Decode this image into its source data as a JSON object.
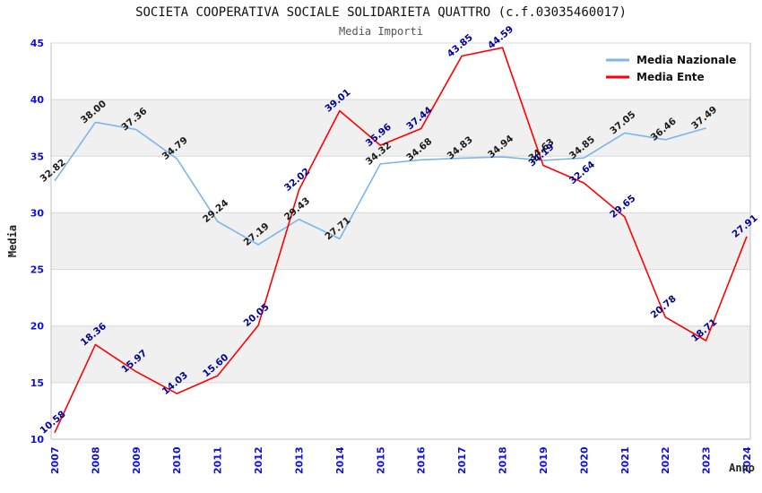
{
  "header": {
    "title": "SOCIETA COOPERATIVA SOCIALE SOLIDARIETA QUATTRO (c.f.03035460017)",
    "subtitle": "Media Importi"
  },
  "axes": {
    "y_title": "Media",
    "x_title": "Anno"
  },
  "colors": {
    "nazionale_line": "#7CB5EC",
    "ente_line": "#FF0000",
    "tick_label": "#0F0FDD",
    "nazionale_data_label": "#1A1A1A",
    "ente_data_label": "#000099",
    "band": "#F0F0F0",
    "gridline": "#D8D8D8",
    "axis_frame": "#C0C0C0"
  },
  "chart_data": {
    "type": "line",
    "title": "SOCIETA COOPERATIVA SOCIALE SOLIDARIETA QUATTRO (c.f.03035460017)",
    "subtitle": "Media Importi",
    "xlabel": "Anno",
    "ylabel": "Media",
    "ylim": [
      10,
      45
    ],
    "ytick_step": 5,
    "grid": "horizontal-with-alternating-bands",
    "legend_position": "top-right-inside",
    "x": [
      2007,
      2008,
      2009,
      2010,
      2011,
      2012,
      2013,
      2014,
      2015,
      2016,
      2017,
      2018,
      2019,
      2020,
      2021,
      2022,
      2023,
      2024
    ],
    "series": [
      {
        "name": "Media Nazionale",
        "color": "#7CB5EC",
        "label_color": "#1A1A1A",
        "values": [
          32.82,
          38.0,
          37.36,
          34.79,
          29.24,
          27.19,
          29.43,
          27.71,
          34.32,
          34.68,
          34.83,
          34.94,
          34.63,
          34.85,
          37.05,
          36.46,
          37.49,
          null
        ]
      },
      {
        "name": "Media Ente",
        "color": "#FF0000",
        "label_color": "#000099",
        "values": [
          10.58,
          18.36,
          15.97,
          14.03,
          15.6,
          20.05,
          32.02,
          39.01,
          35.96,
          37.44,
          43.85,
          44.59,
          34.19,
          32.64,
          29.65,
          20.78,
          18.71,
          27.91
        ]
      }
    ]
  }
}
